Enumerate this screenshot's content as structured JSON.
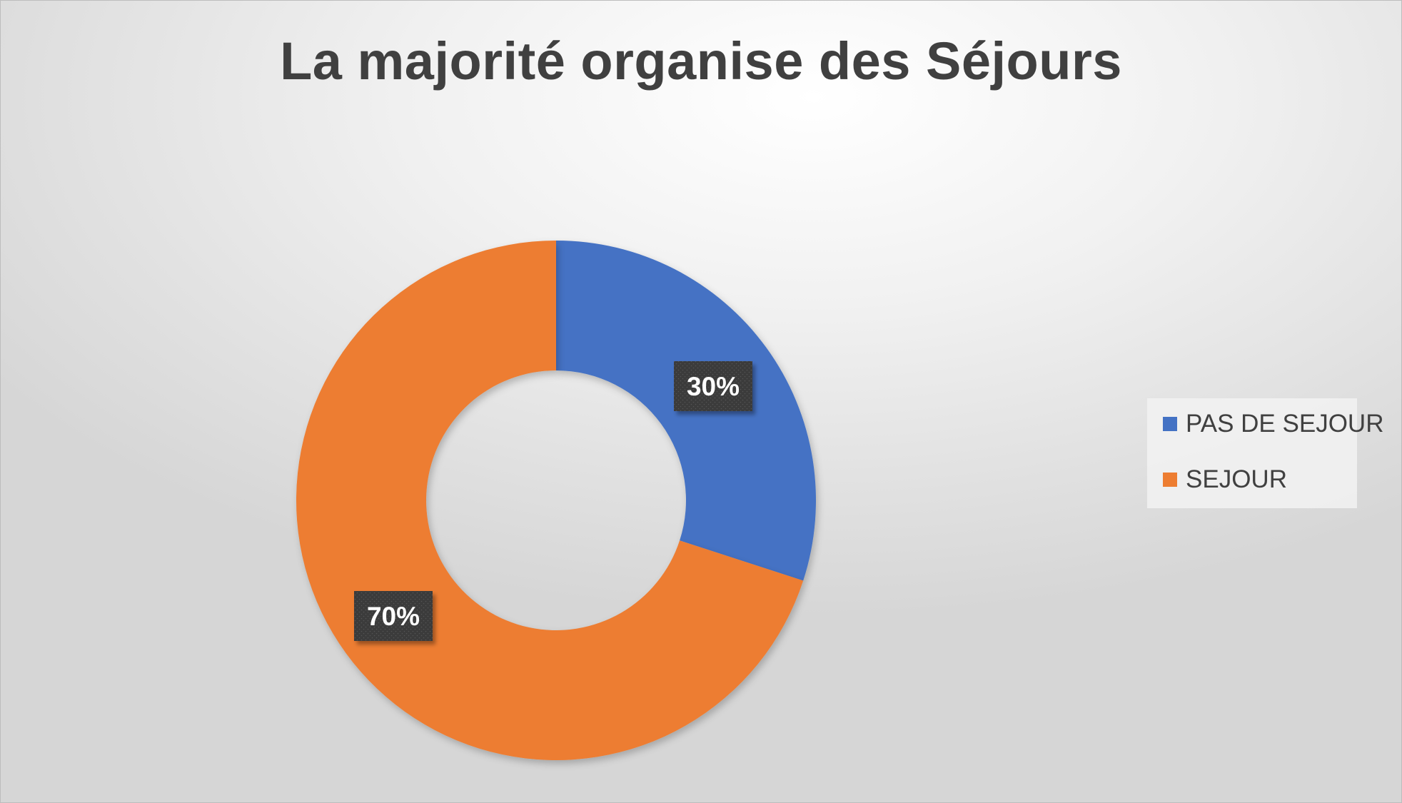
{
  "chart_data": {
    "type": "pie",
    "variant": "donut",
    "title": "La majorité organise des Séjours",
    "categories": [
      "PAS DE SEJOUR",
      "SEJOUR"
    ],
    "values": [
      30,
      70
    ],
    "data_labels": [
      "30%",
      "70%"
    ],
    "colors": [
      "#4472C4",
      "#ED7D31"
    ],
    "legend_position": "right",
    "data_label_background": "#3a3a3a"
  }
}
